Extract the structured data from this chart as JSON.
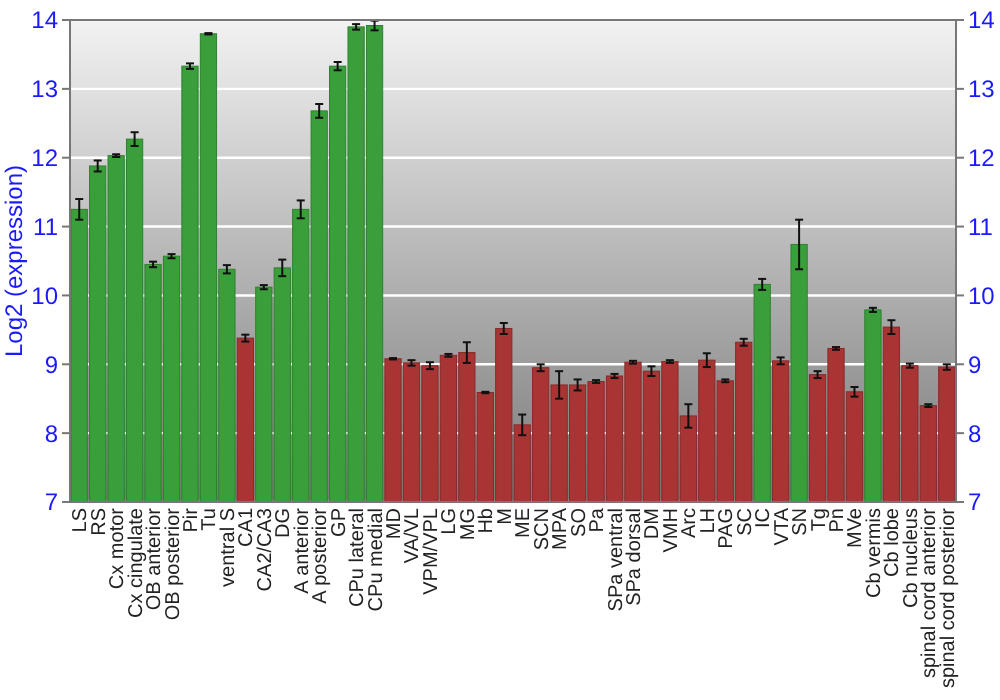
{
  "chart_data": {
    "type": "bar",
    "ylabel": "Log2 (expression)",
    "categories": [
      "LS",
      "RS",
      "Cx motor",
      "Cx cingulate",
      "OB anterior",
      "OB posterior",
      "Pir",
      "Tu",
      "ventral S",
      "CA1",
      "CA2/CA3",
      "DG",
      "A anterior",
      "A posterior",
      "GP",
      "CPu lateral",
      "CPu medial",
      "MD",
      "VA/VL",
      "VPM/VPL",
      "LG",
      "MG",
      "Hb",
      "M",
      "ME",
      "SCN",
      "MPA",
      "SO",
      "Pa",
      "SPa ventral",
      "SPa dorsal",
      "DM",
      "VMH",
      "Arc",
      "LH",
      "PAG",
      "SC",
      "IC",
      "VTA",
      "SN",
      "Tg",
      "Pn",
      "MVe",
      "Cb vermis",
      "Cb lobe",
      "Cb nucleus",
      "spinal cord anterior",
      "spinal cord posterior"
    ],
    "values": [
      11.25,
      11.88,
      12.03,
      12.27,
      10.45,
      10.57,
      13.33,
      13.8,
      10.38,
      9.38,
      10.12,
      10.4,
      11.25,
      12.68,
      13.33,
      13.9,
      13.92,
      9.08,
      9.02,
      8.98,
      9.13,
      9.17,
      8.59,
      9.52,
      8.12,
      8.95,
      8.7,
      8.7,
      8.75,
      8.83,
      9.03,
      8.9,
      9.04,
      8.25,
      9.06,
      8.76,
      9.32,
      10.16,
      9.05,
      10.74,
      8.85,
      9.23,
      8.6,
      9.79,
      9.54,
      8.98,
      8.4,
      8.96
    ],
    "errors": [
      0.15,
      0.08,
      0.02,
      0.1,
      0.04,
      0.03,
      0.04,
      0.01,
      0.06,
      0.05,
      0.03,
      0.12,
      0.13,
      0.1,
      0.06,
      0.04,
      0.07,
      0.01,
      0.04,
      0.05,
      0.02,
      0.15,
      0.01,
      0.08,
      0.15,
      0.05,
      0.2,
      0.08,
      0.02,
      0.03,
      0.02,
      0.07,
      0.02,
      0.17,
      0.1,
      0.02,
      0.05,
      0.08,
      0.05,
      0.36,
      0.05,
      0.02,
      0.07,
      0.03,
      0.1,
      0.03,
      0.02,
      0.04
    ],
    "colors": [
      "#3a9e3a",
      "#3a9e3a",
      "#3a9e3a",
      "#3a9e3a",
      "#3a9e3a",
      "#3a9e3a",
      "#3a9e3a",
      "#3a9e3a",
      "#3a9e3a",
      "#a83434",
      "#3a9e3a",
      "#3a9e3a",
      "#3a9e3a",
      "#3a9e3a",
      "#3a9e3a",
      "#3a9e3a",
      "#3a9e3a",
      "#a83434",
      "#a83434",
      "#a83434",
      "#a83434",
      "#a83434",
      "#a83434",
      "#a83434",
      "#a83434",
      "#a83434",
      "#a83434",
      "#a83434",
      "#a83434",
      "#a83434",
      "#a83434",
      "#a83434",
      "#a83434",
      "#a83434",
      "#a83434",
      "#a83434",
      "#a83434",
      "#3a9e3a",
      "#a83434",
      "#3a9e3a",
      "#a83434",
      "#a83434",
      "#a83434",
      "#3a9e3a",
      "#a83434",
      "#a83434",
      "#a83434",
      "#a83434"
    ],
    "ylim": [
      7,
      14
    ],
    "yticks": [
      7,
      8,
      9,
      10,
      11,
      12,
      13,
      14
    ],
    "y2lim": [
      7,
      14
    ],
    "y2ticks": [
      7,
      8,
      9,
      10,
      11,
      12,
      13,
      14
    ],
    "grid": "y"
  }
}
